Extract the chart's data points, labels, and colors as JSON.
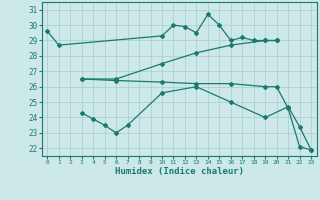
{
  "xlabel": "Humidex (Indice chaleur)",
  "bg_color": "#cce8e8",
  "grid_color": "#aacccc",
  "line_color": "#1a7a6e",
  "xlim": [
    -0.5,
    23.5
  ],
  "ylim": [
    21.5,
    31.5
  ],
  "yticks": [
    22,
    23,
    24,
    25,
    26,
    27,
    28,
    29,
    30,
    31
  ],
  "xticks": [
    0,
    1,
    2,
    3,
    4,
    5,
    6,
    7,
    8,
    9,
    10,
    11,
    12,
    13,
    14,
    15,
    16,
    17,
    18,
    19,
    20,
    21,
    22,
    23
  ],
  "lines": [
    {
      "x": [
        0,
        1,
        10,
        11,
        12,
        13,
        14,
        15,
        16,
        17,
        18,
        19,
        20
      ],
      "y": [
        29.6,
        28.7,
        29.3,
        30.0,
        29.9,
        29.5,
        30.7,
        30.0,
        29.0,
        29.2,
        29.0,
        29.0,
        29.0
      ]
    },
    {
      "x": [
        3,
        6,
        10,
        13,
        16,
        19,
        20
      ],
      "y": [
        26.5,
        26.5,
        27.5,
        28.2,
        28.7,
        29.0,
        29.0
      ]
    },
    {
      "x": [
        3,
        6,
        10,
        13,
        16,
        19,
        20,
        21,
        22,
        23
      ],
      "y": [
        26.5,
        26.4,
        26.3,
        26.2,
        26.2,
        26.0,
        26.0,
        24.6,
        22.1,
        21.9
      ]
    },
    {
      "x": [
        3,
        4,
        5,
        6,
        7,
        10,
        13,
        16,
        19,
        21,
        22,
        23
      ],
      "y": [
        24.3,
        23.9,
        23.5,
        23.0,
        23.5,
        25.6,
        26.0,
        25.0,
        24.0,
        24.7,
        23.4,
        21.9
      ]
    }
  ]
}
